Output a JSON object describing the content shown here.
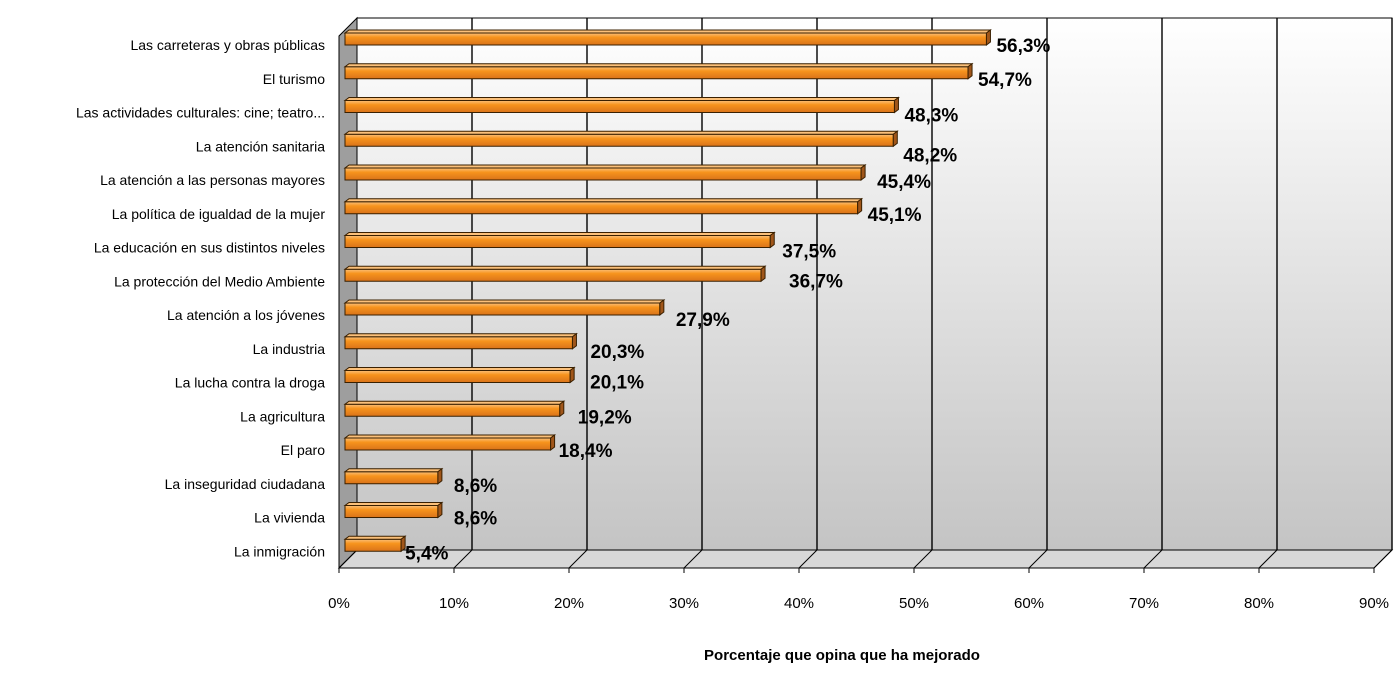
{
  "chart_data": {
    "type": "bar",
    "orientation": "horizontal",
    "categories": [
      "Las carreteras y obras públicas",
      "El turismo",
      "Las actividades culturales: cine; teatro...",
      "La atención sanitaria",
      "La atención a las personas mayores",
      "La política de igualdad de la mujer",
      "La educación en sus distintos niveles",
      "La protección del Medio Ambiente",
      "La atención a los jóvenes",
      "La industria",
      "La lucha contra la droga",
      "La agricultura",
      "El paro",
      "La inseguridad ciudadana",
      "La vivienda",
      "La inmigración"
    ],
    "values": [
      56.3,
      54.7,
      48.3,
      48.2,
      45.4,
      45.1,
      37.5,
      36.7,
      27.9,
      20.3,
      20.1,
      19.2,
      18.4,
      8.6,
      8.6,
      5.4
    ],
    "data_labels": [
      "56,3%",
      "54,7%",
      "48,3%",
      "48,2%",
      "45,4%",
      "45,1%",
      "37,5%",
      "36,7%",
      "27,9%",
      "20,3%",
      "20,1%",
      "19,2%",
      "18,4%",
      "8,6%",
      "8,6%",
      "5,4%"
    ],
    "x_ticks": [
      "0%",
      "10%",
      "20%",
      "30%",
      "40%",
      "50%",
      "60%",
      "70%",
      "80%",
      "90%"
    ],
    "xlim": [
      0,
      90
    ],
    "xlabel": "Porcentaje que opina que ha mejorado",
    "ylabel": "",
    "title": "",
    "grid": true,
    "style": "3d",
    "colors": {
      "bar": "#F7941D",
      "bar_top": "#FBC07A",
      "bar_end": "#A0561A",
      "bar_stroke": "#3A2000",
      "wall_top": "#FFFFFF",
      "wall_bottom": "#C8C8C8",
      "grid": "#000000"
    }
  }
}
